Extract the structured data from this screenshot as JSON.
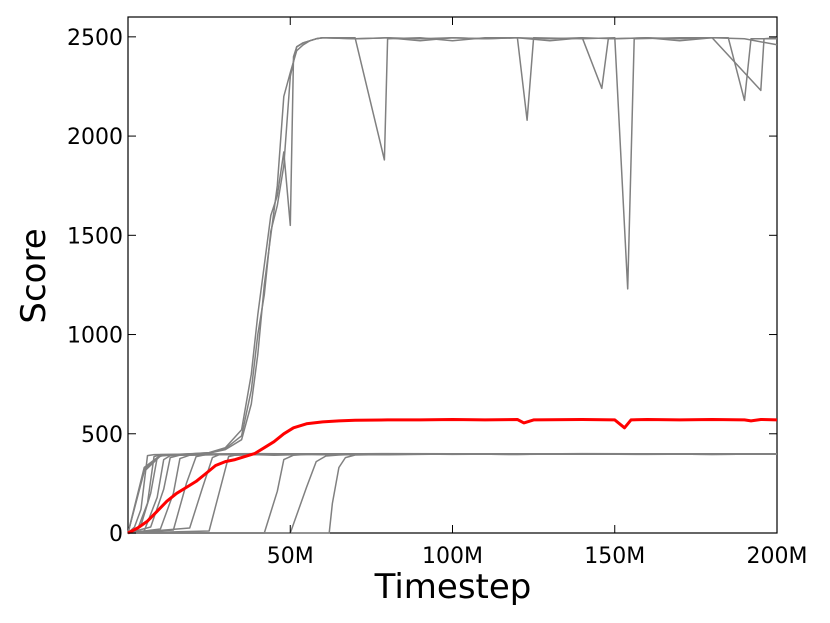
{
  "chart_data": {
    "type": "line",
    "title": "",
    "xlabel": "Timestep",
    "ylabel": "Score",
    "xlim": [
      0,
      200
    ],
    "ylim": [
      0,
      2600
    ],
    "x_unit": "M",
    "xticks": [
      {
        "value": 50,
        "label": "50M"
      },
      {
        "value": 100,
        "label": "100M"
      },
      {
        "value": 150,
        "label": "150M"
      },
      {
        "value": 200,
        "label": "200M"
      }
    ],
    "yticks": [
      {
        "value": 0,
        "label": "0"
      },
      {
        "value": 500,
        "label": "500"
      },
      {
        "value": 1000,
        "label": "1000"
      },
      {
        "value": 1500,
        "label": "1500"
      },
      {
        "value": 2000,
        "label": "2000"
      },
      {
        "value": 2500,
        "label": "2500"
      }
    ],
    "grid": false,
    "legend": "none",
    "colors": {
      "runs": "#808080",
      "mean": "#ff0000",
      "axes": "#000000"
    },
    "series": [
      {
        "role": "run",
        "x": [
          0,
          2,
          4,
          6,
          8,
          20,
          40,
          60,
          80,
          100,
          120,
          140,
          160,
          180,
          200
        ],
        "y": [
          0,
          30,
          120,
          390,
          395,
          398,
          400,
          398,
          400,
          399,
          398,
          400,
          399,
          398,
          398
        ]
      },
      {
        "role": "run",
        "x": [
          0,
          3,
          6,
          8,
          10,
          20,
          40,
          60,
          80,
          100,
          120,
          140,
          160,
          180,
          200
        ],
        "y": [
          0,
          20,
          150,
          385,
          395,
          396,
          398,
          399,
          397,
          399,
          398,
          399,
          398,
          399,
          398
        ]
      },
      {
        "role": "run",
        "x": [
          0,
          4,
          7,
          9,
          11,
          20,
          40,
          60,
          80,
          100,
          120,
          140,
          160,
          180,
          200
        ],
        "y": [
          0,
          40,
          200,
          380,
          393,
          397,
          396,
          399,
          398,
          397,
          399,
          398,
          397,
          398,
          398
        ]
      },
      {
        "role": "run",
        "x": [
          0,
          5,
          9,
          11,
          13,
          20,
          40,
          60,
          80,
          100,
          120,
          140,
          160,
          180,
          200
        ],
        "y": [
          0,
          10,
          180,
          370,
          390,
          395,
          398,
          397,
          399,
          398,
          396,
          398,
          399,
          397,
          398
        ]
      },
      {
        "role": "run",
        "x": [
          0,
          7,
          11,
          13,
          16,
          25,
          40,
          60,
          80,
          100,
          120,
          140,
          160,
          180,
          200
        ],
        "y": [
          0,
          30,
          220,
          380,
          392,
          396,
          395,
          398,
          397,
          399,
          398,
          397,
          398,
          396,
          398
        ]
      },
      {
        "role": "run",
        "x": [
          0,
          10,
          14,
          16,
          19,
          30,
          45,
          60,
          80,
          100,
          120,
          140,
          160,
          180,
          200
        ],
        "y": [
          0,
          20,
          200,
          375,
          392,
          395,
          397,
          396,
          398,
          397,
          399,
          398,
          396,
          398,
          398
        ]
      },
      {
        "role": "run",
        "x": [
          0,
          14,
          18,
          21,
          24,
          30,
          45,
          60,
          80,
          100,
          120,
          140,
          160,
          180,
          200
        ],
        "y": [
          0,
          15,
          250,
          385,
          395,
          396,
          398,
          394,
          397,
          398,
          396,
          399,
          397,
          398,
          398
        ]
      },
      {
        "role": "run",
        "x": [
          0,
          19,
          23,
          26,
          28,
          35,
          45,
          60,
          80,
          100,
          120,
          140,
          160,
          180,
          200
        ],
        "y": [
          0,
          25,
          230,
          380,
          394,
          397,
          392,
          398,
          399,
          396,
          398,
          397,
          399,
          398,
          398
        ]
      },
      {
        "role": "run",
        "x": [
          0,
          25,
          29,
          31,
          33,
          40,
          50,
          60,
          80,
          100,
          120,
          140,
          160,
          180,
          200
        ],
        "y": [
          0,
          10,
          260,
          385,
          392,
          395,
          398,
          396,
          394,
          398,
          397,
          399,
          398,
          396,
          398
        ]
      },
      {
        "role": "run",
        "x": [
          0,
          42,
          46,
          48,
          51,
          55,
          60,
          80,
          100,
          120,
          140,
          160,
          180,
          200
        ],
        "y": [
          0,
          0,
          210,
          370,
          392,
          396,
          398,
          397,
          398,
          396,
          399,
          397,
          398,
          398
        ]
      },
      {
        "role": "run",
        "x": [
          0,
          50,
          55,
          58,
          61,
          65,
          70,
          80,
          100,
          120,
          140,
          160,
          180,
          200
        ],
        "y": [
          0,
          0,
          230,
          360,
          388,
          393,
          396,
          397,
          398,
          399,
          397,
          398,
          396,
          398
        ]
      },
      {
        "role": "run",
        "x": [
          0,
          62,
          63,
          65,
          67,
          70,
          80,
          100,
          120,
          140,
          160,
          180,
          200
        ],
        "y": [
          0,
          0,
          150,
          330,
          380,
          393,
          396,
          398,
          397,
          399,
          398,
          397,
          398
        ]
      },
      {
        "role": "run",
        "x": [
          0,
          5,
          10,
          15,
          20,
          25,
          30,
          35,
          38,
          40,
          42,
          44,
          46,
          48,
          50,
          52,
          54,
          56,
          58,
          60,
          70,
          79,
          80,
          90,
          100,
          110,
          120,
          123,
          125,
          140,
          150,
          154,
          156,
          170,
          185,
          190,
          192,
          200
        ],
        "y": [
          0,
          320,
          390,
          395,
          398,
          402,
          420,
          470,
          650,
          900,
          1250,
          1500,
          1750,
          2200,
          2320,
          2430,
          2460,
          2480,
          2490,
          2495,
          2495,
          1880,
          2490,
          2495,
          2480,
          2495,
          2495,
          2080,
          2495,
          2490,
          2495,
          1230,
          2490,
          2495,
          2495,
          2180,
          2490,
          2490
        ]
      },
      {
        "role": "run",
        "x": [
          0,
          5,
          10,
          15,
          20,
          25,
          30,
          35,
          38,
          40,
          42,
          44,
          46,
          48,
          50,
          51,
          52,
          54,
          56,
          58,
          60,
          70,
          80,
          90,
          100,
          110,
          120,
          130,
          140,
          146,
          148,
          160,
          170,
          180,
          195,
          196,
          200
        ],
        "y": [
          0,
          330,
          392,
          396,
          400,
          405,
          430,
          520,
          800,
          1100,
          1350,
          1600,
          1700,
          1920,
          1550,
          2400,
          2450,
          2470,
          2480,
          2490,
          2495,
          2490,
          2495,
          2480,
          2495,
          2490,
          2495,
          2490,
          2495,
          2240,
          2490,
          2495,
          2490,
          2495,
          2230,
          2490,
          2495
        ]
      },
      {
        "role": "run",
        "x": [
          0,
          5,
          10,
          15,
          20,
          25,
          30,
          35,
          38,
          40,
          42,
          44,
          46,
          48,
          50,
          52,
          54,
          56,
          58,
          60,
          70,
          80,
          90,
          100,
          110,
          120,
          130,
          140,
          150,
          160,
          170,
          180,
          190,
          200
        ],
        "y": [
          0,
          310,
          388,
          395,
          399,
          404,
          425,
          490,
          720,
          1000,
          1200,
          1520,
          1650,
          1850,
          2300,
          2450,
          2470,
          2480,
          2490,
          2495,
          2490,
          2495,
          2490,
          2495,
          2490,
          2495,
          2480,
          2495,
          2490,
          2495,
          2480,
          2495,
          2490,
          2460
        ]
      },
      {
        "role": "mean",
        "x": [
          0,
          3,
          6,
          9,
          12,
          15,
          18,
          21,
          24,
          27,
          30,
          33,
          36,
          39,
          42,
          45,
          48,
          51,
          55,
          60,
          65,
          70,
          80,
          90,
          100,
          110,
          120,
          122,
          125,
          140,
          150,
          153,
          155,
          160,
          170,
          180,
          190,
          192,
          195,
          200
        ],
        "y": [
          0,
          25,
          60,
          110,
          160,
          200,
          230,
          260,
          300,
          340,
          360,
          370,
          385,
          400,
          430,
          460,
          500,
          530,
          550,
          560,
          565,
          568,
          570,
          570,
          572,
          570,
          572,
          555,
          570,
          572,
          570,
          530,
          570,
          572,
          570,
          572,
          570,
          565,
          572,
          570
        ]
      }
    ]
  }
}
